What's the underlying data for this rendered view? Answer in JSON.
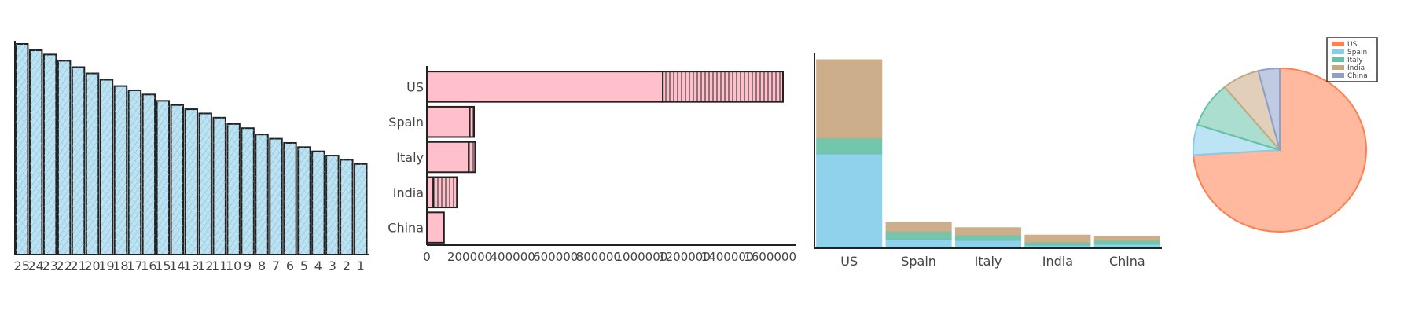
{
  "chart_data": [
    {
      "type": "bar",
      "categories": [
        "25",
        "24",
        "23",
        "22",
        "21",
        "20",
        "19",
        "18",
        "17",
        "16",
        "15",
        "14",
        "13",
        "12",
        "11",
        "10",
        "9",
        "8",
        "7",
        "6",
        "5",
        "4",
        "3",
        "2",
        "1"
      ],
      "values": [
        100,
        97,
        95,
        92,
        89,
        86,
        83,
        80,
        78,
        76,
        73,
        71,
        69,
        67,
        65,
        62,
        60,
        57,
        55,
        53,
        51,
        49,
        47,
        45,
        43
      ],
      "ylim": [
        0,
        100
      ],
      "colors": {
        "fill": "#bde3f2",
        "stroke": "#222222"
      }
    },
    {
      "type": "bar",
      "orientation": "horizontal",
      "categories": [
        "US",
        "Spain",
        "Italy",
        "India",
        "China"
      ],
      "segments": [
        {
          "solid": 1100000,
          "hatched": 560000
        },
        {
          "solid": 200000,
          "hatched": 20000
        },
        {
          "solid": 195000,
          "hatched": 30000
        },
        {
          "solid": 30000,
          "hatched": 110000
        },
        {
          "solid": 80000,
          "hatched": 0
        }
      ],
      "x_ticks": [
        "0",
        "200000",
        "400000",
        "600000",
        "800000",
        "1000000",
        "1200000",
        "1400000",
        "1600000"
      ],
      "xlim": [
        0,
        1660000
      ],
      "colors": {
        "fill": "#ffc0cb",
        "stroke": "#222222"
      }
    },
    {
      "type": "bar",
      "stacked": true,
      "categories": [
        "US",
        "Spain",
        "Italy",
        "India",
        "China"
      ],
      "series": [
        {
          "values": [
            480,
            45,
            40,
            15,
            20
          ],
          "color": "#87ceeb"
        },
        {
          "values": [
            80,
            40,
            25,
            15,
            20
          ],
          "color": "#66c2a5"
        },
        {
          "values": [
            400,
            45,
            40,
            37,
            22
          ],
          "color": "#c8a882"
        }
      ],
      "ylim": [
        0,
        1000
      ]
    },
    {
      "type": "pie",
      "legend": [
        "US",
        "Spain",
        "Italy",
        "India",
        "China"
      ],
      "values": [
        74,
        6,
        9,
        7,
        4
      ],
      "colors": [
        "#ff7f50",
        "#87ceeb",
        "#66c2a5",
        "#c8a882",
        "#8da0cb"
      ],
      "legend_position": "top-right"
    }
  ]
}
